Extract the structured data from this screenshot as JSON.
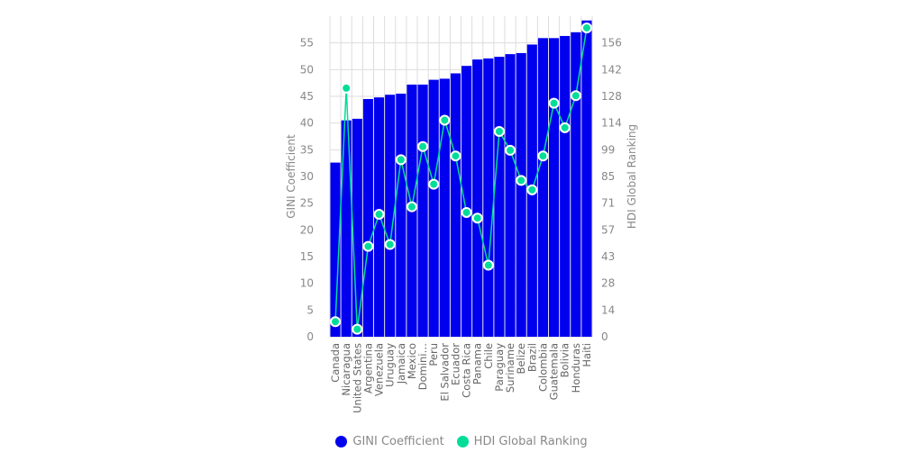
{
  "chart_data": {
    "type": "bar",
    "categories": [
      "Canada",
      "Nicaragua",
      "United States",
      "Argentina",
      "Venezuela",
      "Uruguay",
      "Jamaica",
      "Mexico",
      "Domini…",
      "Peru",
      "El Salvador",
      "Ecuador",
      "Costa Rica",
      "Panama",
      "Chile",
      "Paraguay",
      "Suriname",
      "Belize",
      "Brazil",
      "Colombia",
      "Guatemala",
      "Bolivia",
      "Honduras",
      "Haiti"
    ],
    "series": [
      {
        "name": "GINI Coefficient",
        "type": "bar",
        "axis": "left",
        "color": "#0000ee",
        "values": [
          32.6,
          40.5,
          40.8,
          44.5,
          44.8,
          45.3,
          45.5,
          47.2,
          47.2,
          48.1,
          48.3,
          49.3,
          50.7,
          51.9,
          52.1,
          52.4,
          52.9,
          53.1,
          54.7,
          55.9,
          55.9,
          56.3,
          57.0,
          59.2
        ]
      },
      {
        "name": "HDI Global Ranking",
        "type": "line",
        "axis": "right",
        "color": "#00dd99",
        "values": [
          8,
          132,
          4,
          48,
          65,
          49,
          94,
          69,
          101,
          81,
          115,
          96,
          66,
          63,
          38,
          109,
          99,
          83,
          78,
          96,
          124,
          111,
          128,
          164
        ]
      }
    ],
    "left_axis": {
      "label": "GINI Coefficient",
      "ticks": [
        "0",
        "5",
        "10",
        "15",
        "20",
        "25",
        "30",
        "35",
        "40",
        "45",
        "50",
        "55"
      ],
      "range": [
        0,
        60
      ]
    },
    "right_axis": {
      "label": "HDI Global Ranking",
      "ticks": [
        "0",
        "14",
        "28",
        "43",
        "57",
        "71",
        "85",
        "99",
        "114",
        "128",
        "142",
        "156"
      ],
      "range": [
        0,
        170.2
      ]
    },
    "grid": true,
    "legend_position": "bottom"
  }
}
